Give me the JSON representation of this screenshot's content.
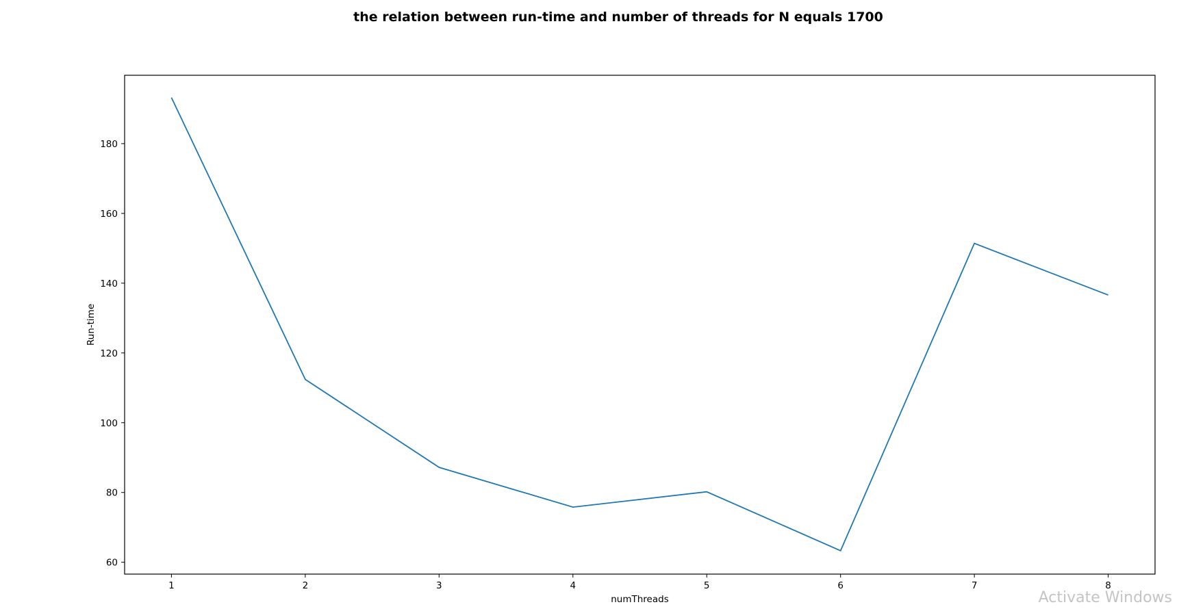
{
  "chart_data": {
    "type": "line",
    "title": "the relation between run-time and number of threads for N equals 1700",
    "xlabel": "numThreads",
    "ylabel": "Run-time",
    "x": [
      1,
      2,
      3,
      4,
      5,
      6,
      7,
      8
    ],
    "x_ticks": [
      1,
      2,
      3,
      4,
      5,
      6,
      7,
      8
    ],
    "y_ticks": [
      60,
      80,
      100,
      120,
      140,
      160,
      180
    ],
    "series": [
      {
        "values": [
          193.2,
          112.4,
          87.2,
          75.8,
          80.2,
          63.3,
          151.4,
          136.6
        ]
      }
    ],
    "xlim": [
      0.65,
      8.35
    ],
    "ylim": [
      56.6,
      199.6
    ],
    "grid": false,
    "color": "#1f77b4"
  },
  "overlay": {
    "watermark": "Activate Windows"
  }
}
